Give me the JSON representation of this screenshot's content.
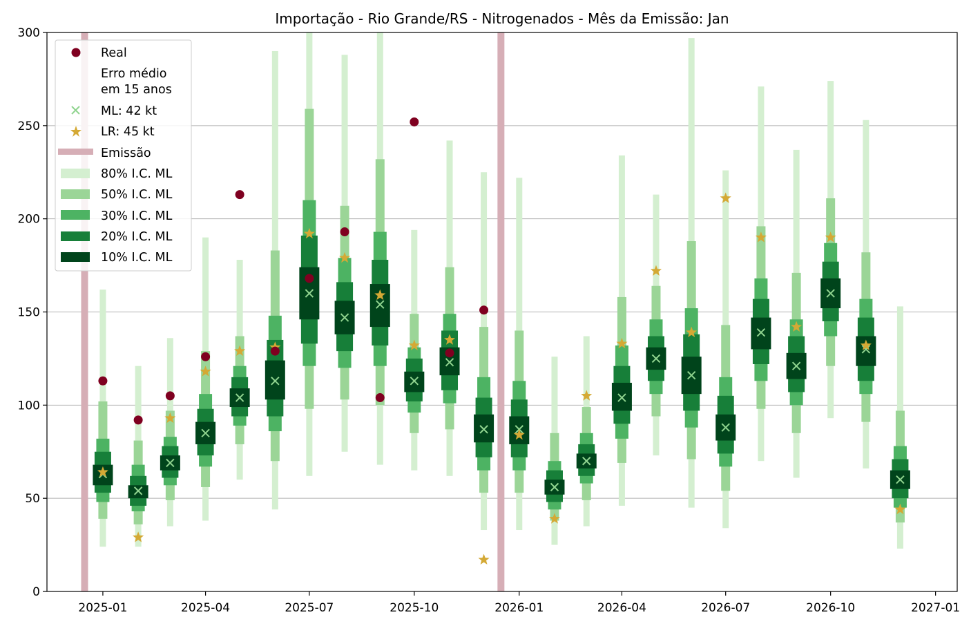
{
  "chart_data": {
    "type": "interval-forecast",
    "title": "Importação - Rio Grande/RS - Nitrogenados - Mês da Emissão: Jan",
    "xlabel": "",
    "ylabel": "",
    "ylim": [
      0,
      300
    ],
    "xlim": [
      "2024-11-13",
      "2027-01-20"
    ],
    "yticks": [
      0,
      50,
      100,
      150,
      200,
      250,
      300
    ],
    "xticks": [
      {
        "date": "2025-01-01",
        "label": "2025-01"
      },
      {
        "date": "2025-04-01",
        "label": "2025-04"
      },
      {
        "date": "2025-07-01",
        "label": "2025-07"
      },
      {
        "date": "2025-10-01",
        "label": "2025-10"
      },
      {
        "date": "2026-01-01",
        "label": "2026-01"
      },
      {
        "date": "2026-04-01",
        "label": "2026-04"
      },
      {
        "date": "2026-07-01",
        "label": "2026-07"
      },
      {
        "date": "2026-10-01",
        "label": "2026-10"
      },
      {
        "date": "2027-01-01",
        "label": "2027-01"
      }
    ],
    "grid": "y",
    "legend_position": "top-left",
    "legend": {
      "real": "Real",
      "erro_line1": "Erro médio",
      "erro_line2": "em 15 anos",
      "ml": "ML: 42 kt",
      "lr": "LR: 45 kt",
      "emissao": "Emissão",
      "ci80": "80% I.C. ML",
      "ci50": "50% I.C. ML",
      "ci30": "30% I.C. ML",
      "ci20": "20% I.C. ML",
      "ci10": "10% I.C. ML"
    },
    "colors": {
      "real": "#7f0020",
      "ml": "#90d48f",
      "lr": "#d4a935",
      "emissao": "#d6aeb6",
      "ci80": "#d4efd0",
      "ci50": "#9bd597",
      "ci30": "#4db363",
      "ci20": "#177f39",
      "ci10": "#00441b",
      "grid": "#b0b0b0"
    },
    "emissao_dates": [
      "2024-12-16",
      "2025-12-16"
    ],
    "series": [
      {
        "date": "2025-01-01",
        "ml": 63,
        "lr": 64,
        "real": 113,
        "ci80": [
          24,
          162
        ],
        "ci50": [
          39,
          102
        ],
        "ci30": [
          48,
          82
        ],
        "ci20": [
          53,
          75
        ],
        "ci10": [
          57,
          68
        ]
      },
      {
        "date": "2025-02-01",
        "ml": 54,
        "lr": 29,
        "real": 92,
        "ci80": [
          24,
          121
        ],
        "ci50": [
          36,
          81
        ],
        "ci30": [
          43,
          68
        ],
        "ci20": [
          46,
          62
        ],
        "ci10": [
          50,
          57
        ]
      },
      {
        "date": "2025-03-01",
        "ml": 69,
        "lr": 93,
        "real": 105,
        "ci80": [
          35,
          136
        ],
        "ci50": [
          49,
          97
        ],
        "ci30": [
          57,
          83
        ],
        "ci20": [
          61,
          78
        ],
        "ci10": [
          65,
          73
        ]
      },
      {
        "date": "2025-04-01",
        "ml": 85,
        "lr": 118,
        "real": 126,
        "ci80": [
          38,
          190
        ],
        "ci50": [
          56,
          129
        ],
        "ci30": [
          67,
          106
        ],
        "ci20": [
          73,
          98
        ],
        "ci10": [
          79,
          91
        ]
      },
      {
        "date": "2025-05-01",
        "ml": 104,
        "lr": 129,
        "real": 213,
        "ci80": [
          60,
          178
        ],
        "ci50": [
          79,
          137
        ],
        "ci30": [
          89,
          121
        ],
        "ci20": [
          94,
          115
        ],
        "ci10": [
          99,
          109
        ]
      },
      {
        "date": "2025-06-01",
        "ml": 113,
        "lr": 131,
        "real": 129,
        "ci80": [
          44,
          290
        ],
        "ci50": [
          70,
          183
        ],
        "ci30": [
          86,
          148
        ],
        "ci20": [
          94,
          135
        ],
        "ci10": [
          103,
          124
        ]
      },
      {
        "date": "2025-07-01",
        "ml": 160,
        "lr": 192,
        "real": 168,
        "ci80": [
          62,
          302
        ],
        "ci50": [
          98,
          259
        ],
        "ci30": [
          121,
          210
        ],
        "ci20": [
          133,
          191
        ],
        "ci10": [
          146,
          174
        ]
      },
      {
        "date": "2025-08-01",
        "ml": 147,
        "lr": 179,
        "real": 193,
        "ci80": [
          75,
          288
        ],
        "ci50": [
          103,
          207
        ],
        "ci30": [
          120,
          179
        ],
        "ci20": [
          129,
          166
        ],
        "ci10": [
          138,
          156
        ]
      },
      {
        "date": "2025-09-01",
        "ml": 154,
        "lr": 159,
        "real": 104,
        "ci80": [
          68,
          302
        ],
        "ci50": [
          100,
          232
        ],
        "ci30": [
          121,
          193
        ],
        "ci20": [
          132,
          178
        ],
        "ci10": [
          142,
          165
        ]
      },
      {
        "date": "2025-10-01",
        "ml": 113,
        "lr": 132,
        "real": 252,
        "ci80": [
          65,
          194
        ],
        "ci50": [
          85,
          149
        ],
        "ci30": [
          96,
          131
        ],
        "ci20": [
          102,
          125
        ],
        "ci10": [
          107,
          118
        ]
      },
      {
        "date": "2025-11-01",
        "ml": 123,
        "lr": 135,
        "real": 128,
        "ci80": [
          62,
          242
        ],
        "ci50": [
          87,
          174
        ],
        "ci30": [
          101,
          149
        ],
        "ci20": [
          108,
          140
        ],
        "ci10": [
          116,
          131
        ]
      },
      {
        "date": "2025-12-01",
        "ml": 87,
        "lr": 17,
        "real": 151,
        "ci80": [
          33,
          225
        ],
        "ci50": [
          53,
          142
        ],
        "ci30": [
          65,
          115
        ],
        "ci20": [
          72,
          104
        ],
        "ci10": [
          80,
          95
        ]
      },
      {
        "date": "2026-01-01",
        "ml": 87,
        "lr": 84,
        "real": null,
        "ci80": [
          33,
          222
        ],
        "ci50": [
          53,
          140
        ],
        "ci30": [
          65,
          113
        ],
        "ci20": [
          72,
          103
        ],
        "ci10": [
          79,
          94
        ]
      },
      {
        "date": "2026-02-01",
        "ml": 56,
        "lr": 39,
        "real": null,
        "ci80": [
          25,
          126
        ],
        "ci50": [
          38,
          85
        ],
        "ci30": [
          44,
          70
        ],
        "ci20": [
          48,
          65
        ],
        "ci10": [
          52,
          60
        ]
      },
      {
        "date": "2026-03-01",
        "ml": 70,
        "lr": 105,
        "real": null,
        "ci80": [
          35,
          137
        ],
        "ci50": [
          49,
          99
        ],
        "ci30": [
          58,
          85
        ],
        "ci20": [
          62,
          79
        ],
        "ci10": [
          66,
          74
        ]
      },
      {
        "date": "2026-04-01",
        "ml": 104,
        "lr": 133,
        "real": null,
        "ci80": [
          46,
          234
        ],
        "ci50": [
          69,
          158
        ],
        "ci30": [
          82,
          132
        ],
        "ci20": [
          90,
          121
        ],
        "ci10": [
          97,
          112
        ]
      },
      {
        "date": "2026-05-01",
        "ml": 125,
        "lr": 172,
        "real": null,
        "ci80": [
          73,
          213
        ],
        "ci50": [
          94,
          164
        ],
        "ci30": [
          106,
          146
        ],
        "ci20": [
          113,
          137
        ],
        "ci10": [
          119,
          131
        ]
      },
      {
        "date": "2026-06-01",
        "ml": 116,
        "lr": 139,
        "real": null,
        "ci80": [
          45,
          297
        ],
        "ci50": [
          71,
          188
        ],
        "ci30": [
          88,
          152
        ],
        "ci20": [
          97,
          138
        ],
        "ci10": [
          106,
          126
        ]
      },
      {
        "date": "2026-07-01",
        "ml": 88,
        "lr": 211,
        "real": null,
        "ci80": [
          34,
          226
        ],
        "ci50": [
          54,
          143
        ],
        "ci30": [
          67,
          115
        ],
        "ci20": [
          74,
          105
        ],
        "ci10": [
          81,
          95
        ]
      },
      {
        "date": "2026-08-01",
        "ml": 139,
        "lr": 190,
        "real": null,
        "ci80": [
          70,
          271
        ],
        "ci50": [
          98,
          196
        ],
        "ci30": [
          113,
          168
        ],
        "ci20": [
          122,
          157
        ],
        "ci10": [
          130,
          147
        ]
      },
      {
        "date": "2026-09-01",
        "ml": 121,
        "lr": 142,
        "real": null,
        "ci80": [
          61,
          237
        ],
        "ci50": [
          85,
          171
        ],
        "ci30": [
          100,
          146
        ],
        "ci20": [
          107,
          137
        ],
        "ci10": [
          114,
          128
        ]
      },
      {
        "date": "2026-10-01",
        "ml": 160,
        "lr": 190,
        "real": null,
        "ci80": [
          93,
          274
        ],
        "ci50": [
          121,
          211
        ],
        "ci30": [
          137,
          187
        ],
        "ci20": [
          145,
          177
        ],
        "ci10": [
          152,
          168
        ]
      },
      {
        "date": "2026-11-01",
        "ml": 130,
        "lr": 132,
        "real": null,
        "ci80": [
          66,
          253
        ],
        "ci50": [
          91,
          182
        ],
        "ci30": [
          106,
          157
        ],
        "ci20": [
          113,
          147
        ],
        "ci10": [
          121,
          137
        ]
      },
      {
        "date": "2026-12-01",
        "ml": 60,
        "lr": 44,
        "real": null,
        "ci80": [
          23,
          153
        ],
        "ci50": [
          37,
          97
        ],
        "ci30": [
          45,
          78
        ],
        "ci20": [
          50,
          71
        ],
        "ci10": [
          55,
          65
        ]
      }
    ]
  }
}
